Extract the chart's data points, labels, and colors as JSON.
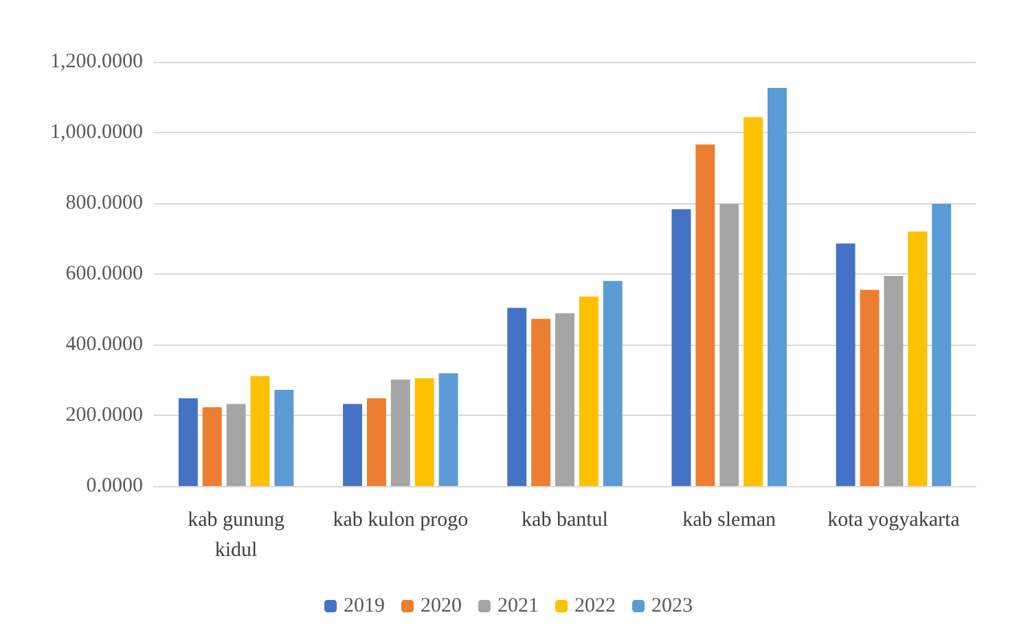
{
  "chart_data": {
    "type": "bar",
    "categories": [
      "kab gunung\nkidul",
      "kab kulon progo",
      "kab bantul",
      "kab sleman",
      "kota yogyakarta"
    ],
    "series": [
      {
        "name": "2019",
        "color": "#4472c4",
        "values": [
          248,
          232,
          504,
          783,
          686
        ]
      },
      {
        "name": "2020",
        "color": "#ed7d31",
        "values": [
          223,
          248,
          473,
          966,
          555
        ]
      },
      {
        "name": "2021",
        "color": "#a5a5a5",
        "values": [
          232,
          301,
          489,
          798,
          594
        ]
      },
      {
        "name": "2022",
        "color": "#ffc000",
        "values": [
          311,
          305,
          536,
          1043,
          720
        ]
      },
      {
        "name": "2023",
        "color": "#5b9bd5",
        "values": [
          272,
          319,
          580,
          1126,
          798
        ]
      }
    ],
    "ylim": [
      0,
      1200
    ],
    "yticks": [
      {
        "value": 0,
        "label": "0.0000"
      },
      {
        "value": 200,
        "label": "200.0000"
      },
      {
        "value": 400,
        "label": "400.0000"
      },
      {
        "value": 600,
        "label": "600.0000"
      },
      {
        "value": 800,
        "label": "800.0000"
      },
      {
        "value": 1000,
        "label": "1,000.0000"
      },
      {
        "value": 1200,
        "label": "1,200.0000"
      }
    ],
    "grid": "y",
    "legend": "bottom"
  }
}
